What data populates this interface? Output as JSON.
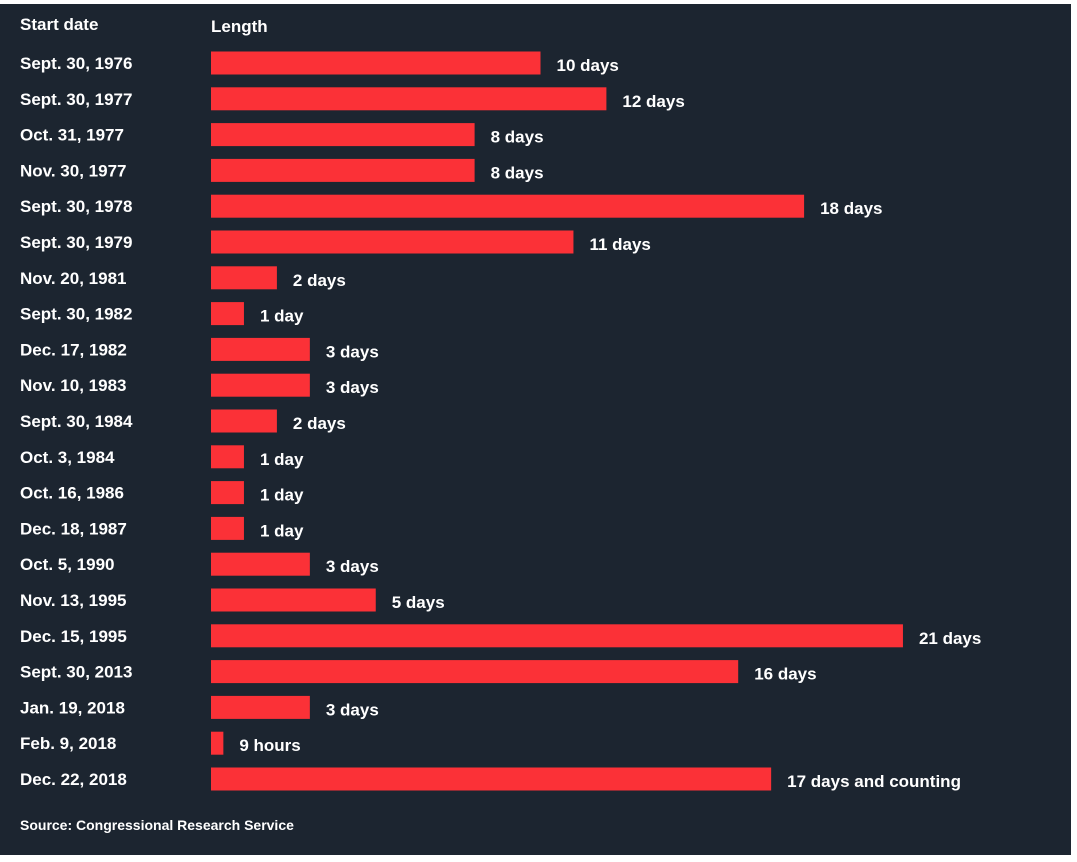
{
  "colors": {
    "background": "#1c2530",
    "bar": "#fb3137",
    "text": "#ffffff"
  },
  "chart_data": {
    "type": "bar",
    "orientation": "horizontal",
    "column_headers": {
      "category": "Start date",
      "value": "Length"
    },
    "source": "Source: Congressional Research Service",
    "value_unit": "days",
    "grid": false,
    "categories": [
      "Sept. 30, 1976",
      "Sept. 30, 1977",
      "Oct. 31, 1977",
      "Nov. 30, 1977",
      "Sept. 30, 1978",
      "Sept. 30, 1979",
      "Nov. 20, 1981",
      "Sept. 30, 1982",
      "Dec. 17, 1982",
      "Nov. 10, 1983",
      "Sept. 30, 1984",
      "Oct. 3, 1984",
      "Oct. 16, 1986",
      "Dec. 18, 1987",
      "Oct. 5, 1990",
      "Nov. 13, 1995",
      "Dec. 15, 1995",
      "Sept. 30, 2013",
      "Jan. 19, 2018",
      "Feb. 9, 2018",
      "Dec. 22, 2018"
    ],
    "values": [
      10,
      12,
      8,
      8,
      18,
      11,
      2,
      1,
      3,
      3,
      2,
      1,
      1,
      1,
      3,
      5,
      21,
      16,
      3,
      0.375,
      17
    ],
    "value_labels": [
      "10 days",
      "12 days",
      "8 days",
      "8 days",
      "18 days",
      "11 days",
      "2 days",
      "1 day",
      "3 days",
      "3 days",
      "2 days",
      "1 day",
      "1 day",
      "1 day",
      "3 days",
      "5 days",
      "21 days",
      "16 days",
      "3 days",
      "9 hours",
      "17 days and counting"
    ]
  }
}
